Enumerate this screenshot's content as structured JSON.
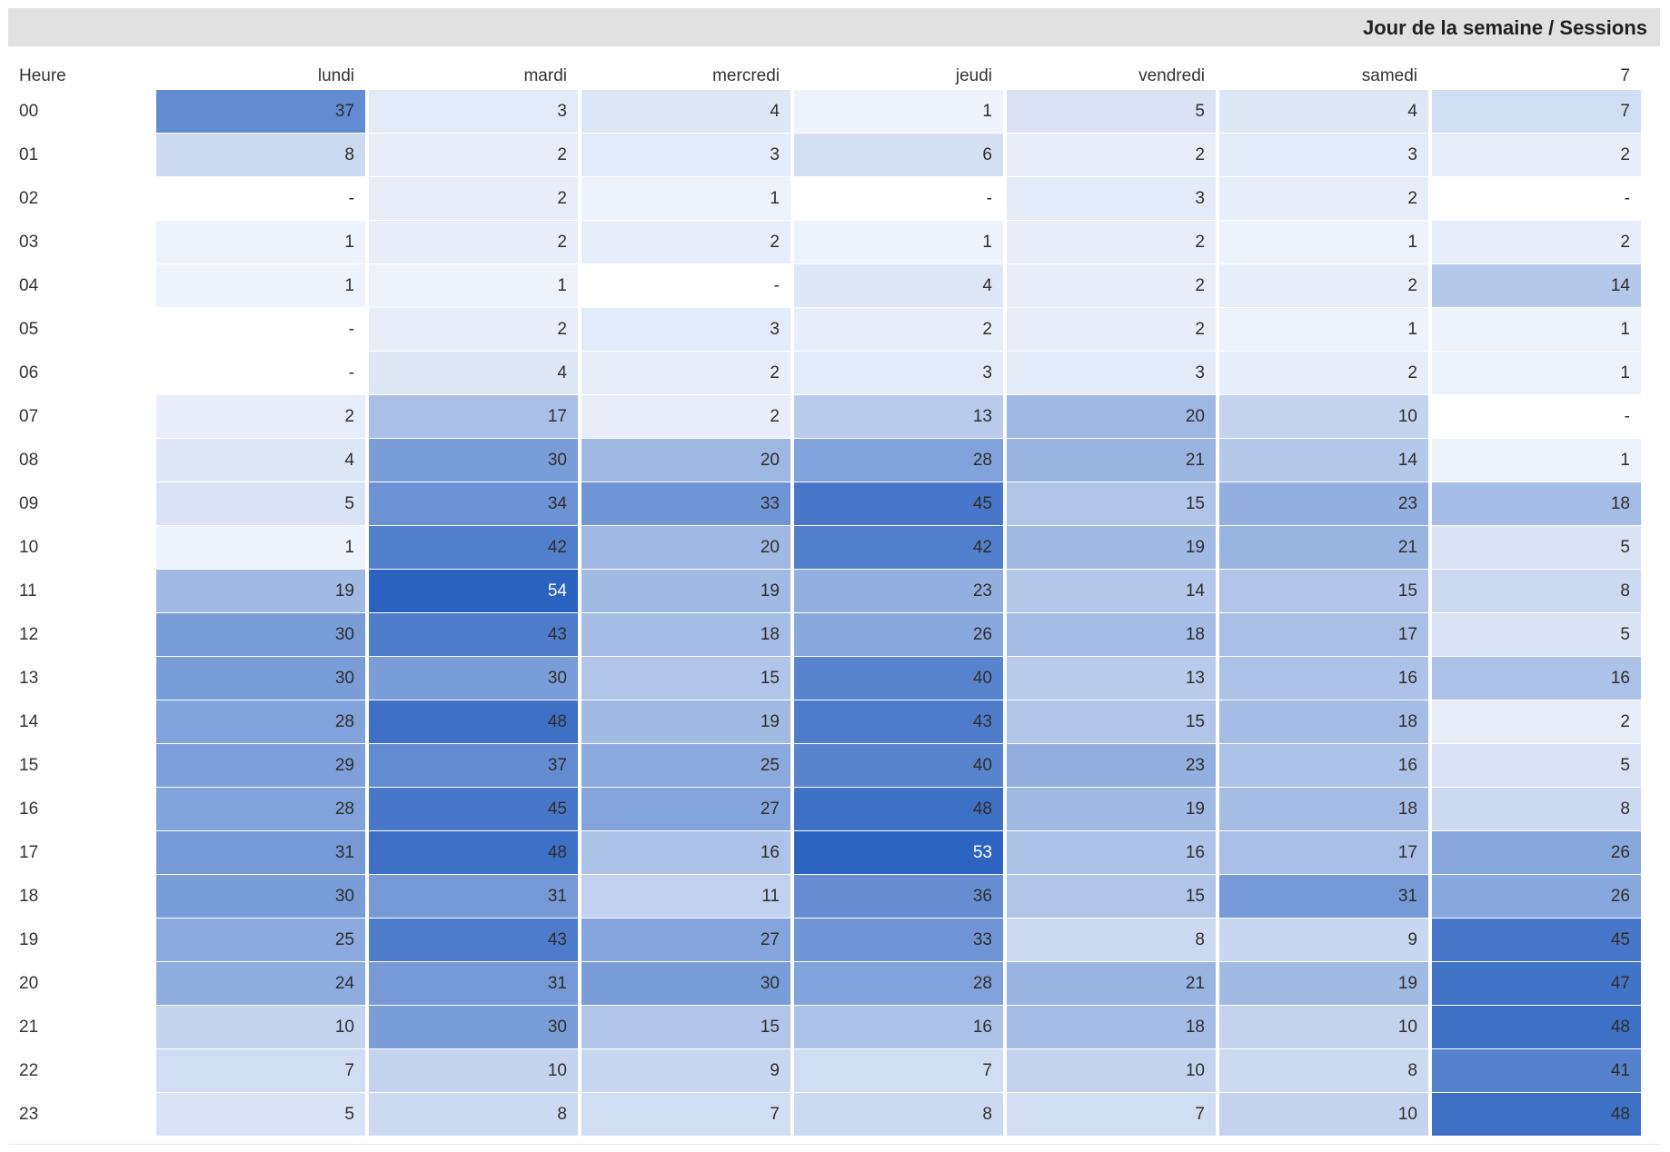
{
  "chart_data": {
    "type": "heatmap",
    "title": "Jour de la semaine / Sessions",
    "row_header": "Heure",
    "columns": [
      "lundi",
      "mardi",
      "mercredi",
      "jeudi",
      "vendredi",
      "samedi",
      "7"
    ],
    "rows": [
      "00",
      "01",
      "02",
      "03",
      "04",
      "05",
      "06",
      "07",
      "08",
      "09",
      "10",
      "11",
      "12",
      "13",
      "14",
      "15",
      "16",
      "17",
      "18",
      "19",
      "20",
      "21",
      "22",
      "23"
    ],
    "values": [
      [
        "37",
        "3",
        "4",
        "1",
        "5",
        "4",
        "7"
      ],
      [
        "8",
        "2",
        "3",
        "6",
        "2",
        "3",
        "2"
      ],
      [
        "-",
        "2",
        "1",
        "-",
        "3",
        "2",
        "-"
      ],
      [
        "1",
        "2",
        "2",
        "1",
        "2",
        "1",
        "2"
      ],
      [
        "1",
        "1",
        "-",
        "4",
        "2",
        "2",
        "14"
      ],
      [
        "-",
        "2",
        "3",
        "2",
        "2",
        "1",
        "1"
      ],
      [
        "-",
        "4",
        "2",
        "3",
        "3",
        "2",
        "1"
      ],
      [
        "2",
        "17",
        "2",
        "13",
        "20",
        "10",
        "-"
      ],
      [
        "4",
        "30",
        "20",
        "28",
        "21",
        "14",
        "1"
      ],
      [
        "5",
        "34",
        "33",
        "45",
        "15",
        "23",
        "18"
      ],
      [
        "1",
        "42",
        "20",
        "42",
        "19",
        "21",
        "5"
      ],
      [
        "19",
        "54",
        "19",
        "23",
        "14",
        "15",
        "8"
      ],
      [
        "30",
        "43",
        "18",
        "26",
        "18",
        "17",
        "5"
      ],
      [
        "30",
        "30",
        "15",
        "40",
        "13",
        "16",
        "16"
      ],
      [
        "28",
        "48",
        "19",
        "43",
        "15",
        "18",
        "2"
      ],
      [
        "29",
        "37",
        "25",
        "40",
        "23",
        "16",
        "5"
      ],
      [
        "28",
        "45",
        "27",
        "48",
        "19",
        "18",
        "8"
      ],
      [
        "31",
        "48",
        "16",
        "53",
        "16",
        "17",
        "26"
      ],
      [
        "30",
        "31",
        "11",
        "36",
        "15",
        "31",
        "26"
      ],
      [
        "25",
        "43",
        "27",
        "33",
        "8",
        "9",
        "45"
      ],
      [
        "24",
        "31",
        "30",
        "28",
        "21",
        "19",
        "47"
      ],
      [
        "10",
        "30",
        "15",
        "16",
        "18",
        "10",
        "48"
      ],
      [
        "7",
        "10",
        "9",
        "7",
        "10",
        "8",
        "41"
      ],
      [
        "5",
        "8",
        "7",
        "8",
        "7",
        "10",
        "48"
      ]
    ],
    "color_scale": {
      "low": "#f4f7fd",
      "high": "#2b62c0",
      "empty": "#ffffff"
    }
  }
}
